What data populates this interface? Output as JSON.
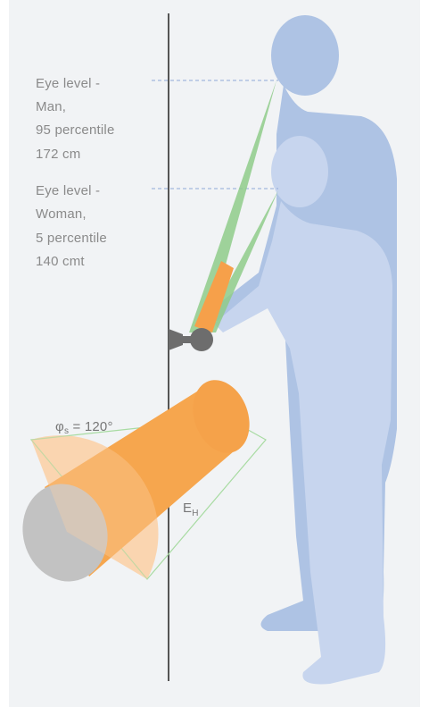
{
  "labels": {
    "man": [
      "Eye level -",
      "Man,",
      "95 percentile",
      "172 cm"
    ],
    "woman": [
      "Eye level -",
      "Woman,",
      "5 percentile",
      "140 cmt"
    ]
  },
  "angle": {
    "symbol": "φ",
    "subscript": "s",
    "text": " = 120°"
  },
  "illuminance": {
    "symbol": "E",
    "subscript": "H"
  }
}
